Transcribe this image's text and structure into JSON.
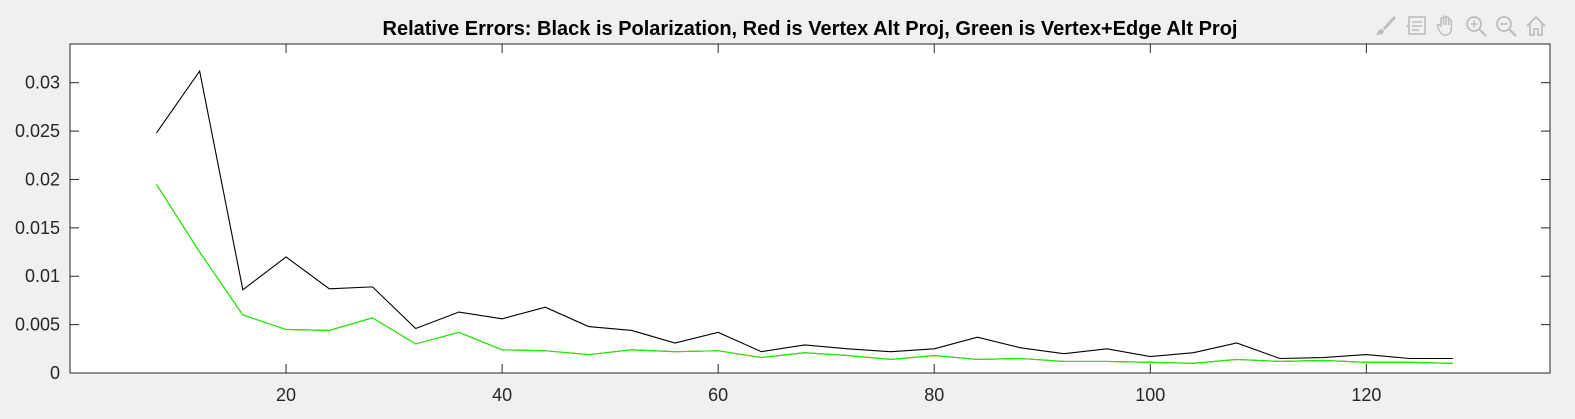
{
  "toolbar": {
    "items": [
      {
        "name": "brush-icon"
      },
      {
        "name": "datatip-icon"
      },
      {
        "name": "pan-hand-icon"
      },
      {
        "name": "zoom-in-icon"
      },
      {
        "name": "zoom-out-icon"
      },
      {
        "name": "home-icon"
      }
    ],
    "icon_color": "#bdbdbd"
  },
  "chart_data": {
    "type": "line",
    "title": "Relative Errors: Black is Polarization, Red is Vertex Alt Proj, Green is Vertex+Edge Alt Proj",
    "xlabel": "",
    "ylabel": "",
    "xlim": [
      0,
      137
    ],
    "ylim": [
      0,
      0.034
    ],
    "xticks": [
      20,
      40,
      60,
      80,
      100,
      120
    ],
    "yticks": [
      0,
      0.005,
      0.01,
      0.015,
      0.02,
      0.025,
      0.03
    ],
    "ytick_labels": [
      "0",
      "0.005",
      "0.01",
      "0.015",
      "0.02",
      "0.025",
      "0.03"
    ],
    "grid": false,
    "background": "#ffffff",
    "x": [
      8,
      12,
      16,
      20,
      24,
      28,
      32,
      36,
      40,
      44,
      48,
      52,
      56,
      60,
      64,
      68,
      72,
      76,
      80,
      84,
      88,
      92,
      96,
      100,
      104,
      108,
      112,
      116,
      120,
      124,
      128
    ],
    "series": [
      {
        "color": "#000000",
        "values": [
          0.0248,
          0.0312,
          0.0086,
          0.012,
          0.0087,
          0.0089,
          0.0046,
          0.0063,
          0.0056,
          0.0068,
          0.0048,
          0.0044,
          0.0031,
          0.0042,
          0.0022,
          0.0029,
          0.0025,
          0.0022,
          0.0025,
          0.0037,
          0.0026,
          0.002,
          0.0025,
          0.0017,
          0.0021,
          0.0031,
          0.0015,
          0.0016,
          0.0019,
          0.0015,
          0.0015
        ]
      },
      {
        "color": "#ff0000",
        "values": [
          0.0195,
          0.0125,
          0.006,
          0.0045,
          0.0044,
          0.0057,
          0.003,
          0.0042,
          0.0024,
          0.0023,
          0.0019,
          0.0024,
          0.0022,
          0.0023,
          0.0016,
          0.0021,
          0.0018,
          0.0014,
          0.0018,
          0.0014,
          0.0015,
          0.0012,
          0.0012,
          0.0011,
          0.001,
          0.0014,
          0.0012,
          0.0013,
          0.0011,
          0.0011,
          0.001
        ]
      },
      {
        "color": "#00ff00",
        "values": [
          0.0195,
          0.0125,
          0.006,
          0.0045,
          0.0044,
          0.0057,
          0.003,
          0.0042,
          0.0024,
          0.0023,
          0.0019,
          0.0024,
          0.0022,
          0.0023,
          0.0016,
          0.0021,
          0.0018,
          0.0014,
          0.0018,
          0.0014,
          0.0015,
          0.0012,
          0.0012,
          0.0011,
          0.001,
          0.0014,
          0.0012,
          0.0013,
          0.0011,
          0.0011,
          0.001
        ]
      }
    ]
  }
}
